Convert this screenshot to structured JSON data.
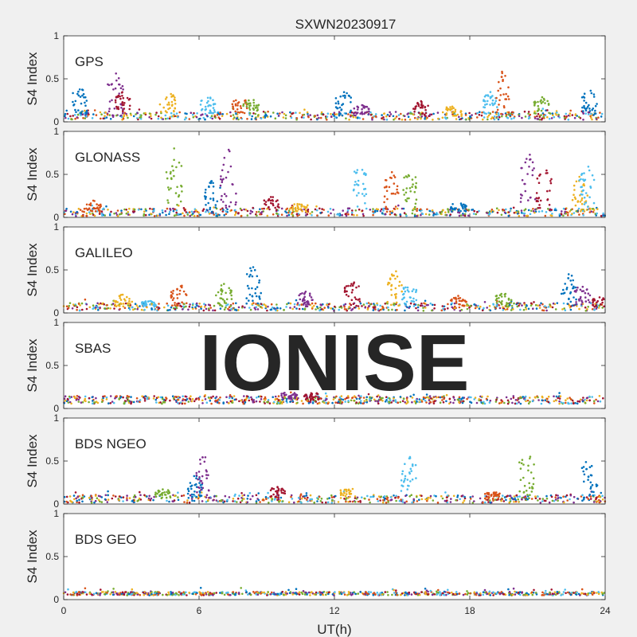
{
  "figure": {
    "title": "SXWN20230917",
    "xlabel": "UT(h)",
    "watermark": "IONISE"
  },
  "colors": {
    "series": [
      "#0072BD",
      "#D95319",
      "#EDB120",
      "#7E2F8E",
      "#77AC30",
      "#4DBEEE",
      "#A2142F"
    ],
    "watermark": "#e3e3e3",
    "axes_bg": "#ffffff",
    "figure_bg": "#f0f0f0"
  },
  "chart_data": [
    {
      "type": "scatter",
      "panel": "GPS",
      "ylabel": "S4 Index",
      "xlim": [
        0,
        24
      ],
      "ylim": [
        0,
        1
      ],
      "xticks": [
        0,
        6,
        12,
        18,
        24
      ],
      "yticks": [
        0,
        0.5,
        1
      ],
      "baseline": 0.07,
      "bursts": [
        [
          0.7,
          0.42
        ],
        [
          2.3,
          0.58
        ],
        [
          2.6,
          0.35
        ],
        [
          4.6,
          0.4
        ],
        [
          6.4,
          0.32
        ],
        [
          7.8,
          0.3
        ],
        [
          8.3,
          0.28
        ],
        [
          12.4,
          0.38
        ],
        [
          13.2,
          0.2
        ],
        [
          15.8,
          0.25
        ],
        [
          17.3,
          0.22
        ],
        [
          18.9,
          0.35
        ],
        [
          19.4,
          0.62
        ],
        [
          21.2,
          0.3
        ],
        [
          23.3,
          0.38
        ]
      ]
    },
    {
      "type": "scatter",
      "panel": "GLONASS",
      "ylabel": "S4 Index",
      "xlim": [
        0,
        24
      ],
      "ylim": [
        0,
        1
      ],
      "xticks": [
        0,
        6,
        12,
        18,
        24
      ],
      "yticks": [
        0,
        0.5,
        1
      ],
      "baseline": 0.06,
      "bursts": [
        [
          1.3,
          0.2
        ],
        [
          4.9,
          0.82
        ],
        [
          6.6,
          0.45
        ],
        [
          7.3,
          0.82
        ],
        [
          9.2,
          0.25
        ],
        [
          10.5,
          0.18
        ],
        [
          13.1,
          0.65
        ],
        [
          14.5,
          0.55
        ],
        [
          15.3,
          0.6
        ],
        [
          17.5,
          0.18
        ],
        [
          20.6,
          0.78
        ],
        [
          21.3,
          0.6
        ],
        [
          22.9,
          0.5
        ],
        [
          23.2,
          0.62
        ]
      ]
    },
    {
      "type": "scatter",
      "panel": "GALILEO",
      "ylabel": "S4 Index",
      "xlim": [
        0,
        24
      ],
      "ylim": [
        0,
        1
      ],
      "xticks": [
        0,
        6,
        12,
        18,
        24
      ],
      "yticks": [
        0,
        0.5,
        1
      ],
      "baseline": 0.07,
      "bursts": [
        [
          2.6,
          0.22
        ],
        [
          3.8,
          0.15
        ],
        [
          5.1,
          0.35
        ],
        [
          7.1,
          0.35
        ],
        [
          8.4,
          0.58
        ],
        [
          10.7,
          0.27
        ],
        [
          12.8,
          0.38
        ],
        [
          14.7,
          0.5
        ],
        [
          15.3,
          0.35
        ],
        [
          17.5,
          0.2
        ],
        [
          19.5,
          0.25
        ],
        [
          22.4,
          0.48
        ],
        [
          23.0,
          0.35
        ],
        [
          23.8,
          0.2
        ]
      ]
    },
    {
      "type": "scatter",
      "panel": "SBAS",
      "ylabel": "S4 Index",
      "xlim": [
        0,
        24
      ],
      "ylim": [
        0,
        1
      ],
      "xticks": [
        0,
        6,
        12,
        18,
        24
      ],
      "yticks": [
        0,
        0.5,
        1
      ],
      "baseline": 0.1,
      "bursts": [
        [
          10.0,
          0.2
        ],
        [
          11.0,
          0.2
        ]
      ]
    },
    {
      "type": "scatter",
      "panel": "BDS NGEO",
      "ylabel": "S4 Index",
      "xlim": [
        0,
        24
      ],
      "ylim": [
        0,
        1
      ],
      "xticks": [
        0,
        6,
        12,
        18,
        24
      ],
      "yticks": [
        0,
        0.5,
        1
      ],
      "baseline": 0.06,
      "bursts": [
        [
          4.4,
          0.2
        ],
        [
          5.8,
          0.35
        ],
        [
          6.2,
          0.6
        ],
        [
          9.5,
          0.22
        ],
        [
          12.6,
          0.2
        ],
        [
          15.3,
          0.58
        ],
        [
          19.0,
          0.15
        ],
        [
          20.5,
          0.65
        ],
        [
          23.3,
          0.55
        ]
      ]
    },
    {
      "type": "scatter",
      "panel": "BDS GEO",
      "ylabel": "S4 Index",
      "xlim": [
        0,
        24
      ],
      "ylim": [
        0,
        1
      ],
      "xticks": [
        0,
        6,
        12,
        18,
        24
      ],
      "yticks": [
        0,
        0.5,
        1
      ],
      "baseline": 0.07,
      "bursts": []
    }
  ]
}
